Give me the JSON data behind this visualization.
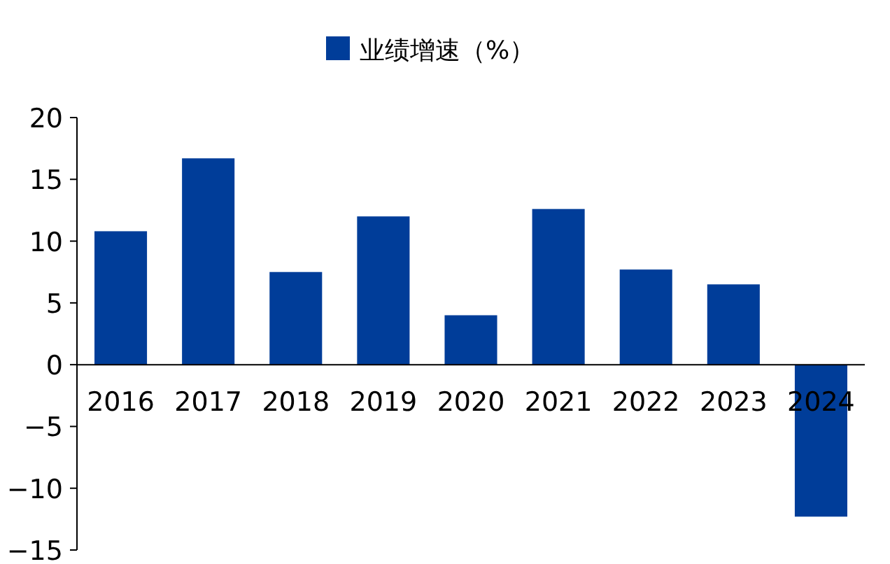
{
  "chart_data": {
    "type": "bar",
    "categories": [
      "2016",
      "2017",
      "2018",
      "2019",
      "2020",
      "2021",
      "2022",
      "2023",
      "2024"
    ],
    "series": [
      {
        "name": "业绩增速（%）",
        "color": "#003d99",
        "values": [
          10.8,
          16.7,
          7.5,
          12.0,
          4.0,
          12.6,
          7.7,
          6.5,
          -12.3
        ]
      }
    ],
    "ylim": [
      -15,
      20
    ],
    "yticks": [
      -15,
      -10,
      -5,
      0,
      5,
      10,
      15,
      20
    ],
    "grid": false,
    "legend": "top"
  }
}
